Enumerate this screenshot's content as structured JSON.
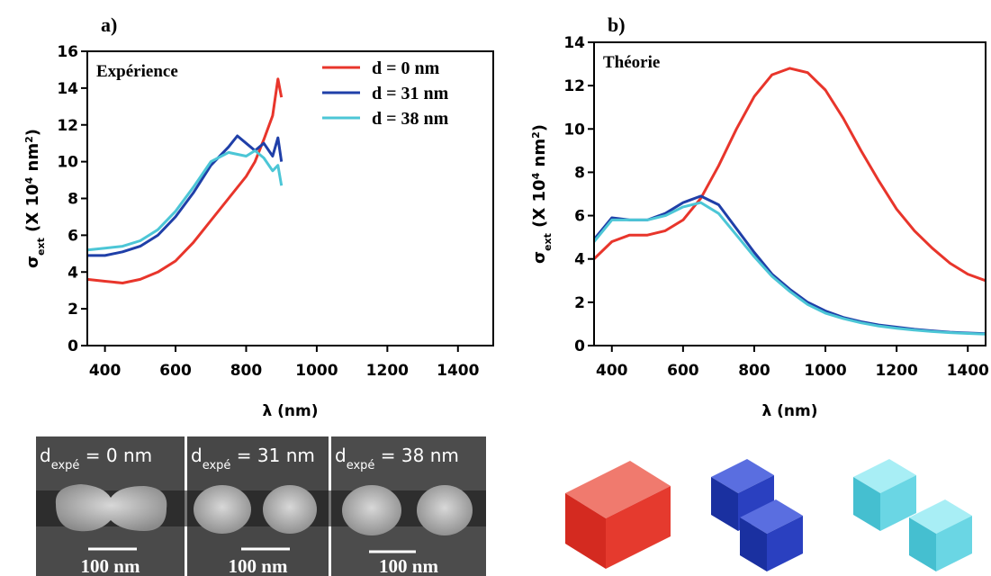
{
  "chart_data": [
    {
      "type": "line",
      "title": "a)",
      "annotation": "Expérience",
      "xlabel": "λ (nm)",
      "ylabel_parts": [
        "σ",
        "ext",
        " (X 10",
        "4",
        " nm",
        "2",
        ")"
      ],
      "xlim": [
        350,
        1500
      ],
      "xticks": [
        400,
        600,
        800,
        1000,
        1200,
        1400
      ],
      "ylim": [
        0,
        16
      ],
      "yticks": [
        0,
        2,
        4,
        6,
        8,
        10,
        12,
        14,
        16
      ],
      "legend": "upper right",
      "series": [
        {
          "name": "d = 0 nm",
          "color": "#e8352b",
          "x": [
            350,
            400,
            450,
            500,
            550,
            600,
            650,
            700,
            750,
            800,
            825,
            850,
            875,
            890,
            900
          ],
          "values": [
            3.6,
            3.5,
            3.4,
            3.6,
            4.0,
            4.6,
            5.6,
            6.8,
            8.0,
            9.2,
            10.0,
            11.2,
            12.5,
            14.5,
            13.5
          ]
        },
        {
          "name": "d = 31 nm",
          "color": "#1f3fa8",
          "x": [
            350,
            400,
            450,
            500,
            550,
            600,
            650,
            700,
            750,
            775,
            800,
            825,
            850,
            875,
            890,
            900
          ],
          "values": [
            4.9,
            4.9,
            5.1,
            5.4,
            6.0,
            7.0,
            8.3,
            9.8,
            10.8,
            11.4,
            11.0,
            10.6,
            11.0,
            10.3,
            11.3,
            10.0
          ]
        },
        {
          "name": "d = 38 nm",
          "color": "#4cc6d6",
          "x": [
            350,
            400,
            450,
            500,
            550,
            600,
            650,
            700,
            750,
            800,
            825,
            850,
            875,
            890,
            900
          ],
          "values": [
            5.2,
            5.3,
            5.4,
            5.7,
            6.3,
            7.3,
            8.6,
            10.0,
            10.5,
            10.3,
            10.6,
            10.2,
            9.5,
            9.8,
            8.7
          ]
        }
      ]
    },
    {
      "type": "line",
      "title": "b)",
      "annotation": "Théorie",
      "xlabel": "λ (nm)",
      "ylabel_parts": [
        "σ",
        "ext",
        " (X 10",
        "4",
        " nm",
        "2",
        ")"
      ],
      "xlim": [
        350,
        1450
      ],
      "xticks": [
        400,
        600,
        800,
        1000,
        1200,
        1400
      ],
      "ylim": [
        0,
        14
      ],
      "yticks": [
        0,
        2,
        4,
        6,
        8,
        10,
        12,
        14
      ],
      "series": [
        {
          "color": "#e8352b",
          "x": [
            350,
            400,
            450,
            500,
            550,
            600,
            650,
            700,
            750,
            800,
            850,
            900,
            950,
            1000,
            1050,
            1100,
            1150,
            1200,
            1250,
            1300,
            1350,
            1400,
            1450
          ],
          "values": [
            4.0,
            4.8,
            5.1,
            5.1,
            5.3,
            5.8,
            6.8,
            8.3,
            10.0,
            11.5,
            12.5,
            12.8,
            12.6,
            11.8,
            10.5,
            9.0,
            7.6,
            6.3,
            5.3,
            4.5,
            3.8,
            3.3,
            3.0
          ]
        },
        {
          "color": "#1f3fa8",
          "x": [
            350,
            400,
            450,
            500,
            550,
            600,
            650,
            700,
            750,
            800,
            850,
            900,
            950,
            1000,
            1050,
            1100,
            1150,
            1200,
            1250,
            1300,
            1350,
            1400,
            1450
          ],
          "values": [
            4.9,
            5.9,
            5.8,
            5.8,
            6.1,
            6.6,
            6.9,
            6.5,
            5.4,
            4.3,
            3.3,
            2.6,
            2.0,
            1.6,
            1.3,
            1.1,
            0.95,
            0.85,
            0.75,
            0.68,
            0.62,
            0.58,
            0.55
          ]
        },
        {
          "color": "#4cc6d6",
          "x": [
            350,
            400,
            450,
            500,
            550,
            600,
            650,
            700,
            750,
            800,
            850,
            900,
            950,
            1000,
            1050,
            1100,
            1150,
            1200,
            1250,
            1300,
            1350,
            1400,
            1450
          ],
          "values": [
            4.8,
            5.8,
            5.8,
            5.8,
            6.0,
            6.4,
            6.6,
            6.1,
            5.1,
            4.1,
            3.2,
            2.5,
            1.9,
            1.5,
            1.25,
            1.05,
            0.9,
            0.8,
            0.72,
            0.65,
            0.6,
            0.56,
            0.53
          ]
        }
      ]
    }
  ],
  "sem_images": [
    {
      "label": "d",
      "subscript": "expé",
      "label_rest": " = 0 nm",
      "scale_bar": "100 nm"
    },
    {
      "label": "d",
      "subscript": "expé",
      "label_rest": " = 31 nm",
      "scale_bar": "100 nm"
    },
    {
      "label": "d",
      "subscript": "expé",
      "label_rest": " = 38 nm",
      "scale_bar": "100 nm"
    }
  ]
}
